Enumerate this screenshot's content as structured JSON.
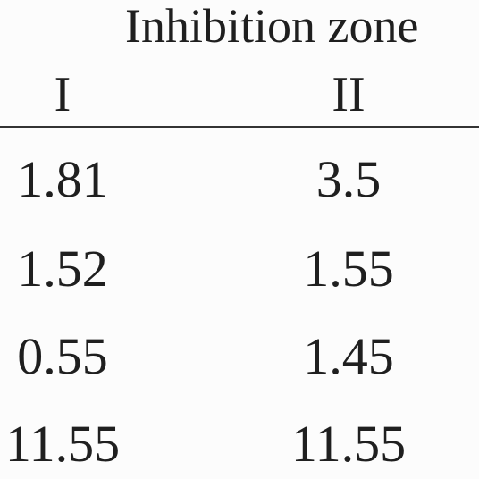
{
  "header": {
    "title": "Inhibition zone"
  },
  "table": {
    "columns": [
      "I",
      "II"
    ],
    "rows": [
      [
        "1.81",
        "3.5"
      ],
      [
        "1.52",
        "1.55"
      ],
      [
        "0.55",
        "1.45"
      ],
      [
        "11.55",
        "11.55"
      ]
    ]
  }
}
